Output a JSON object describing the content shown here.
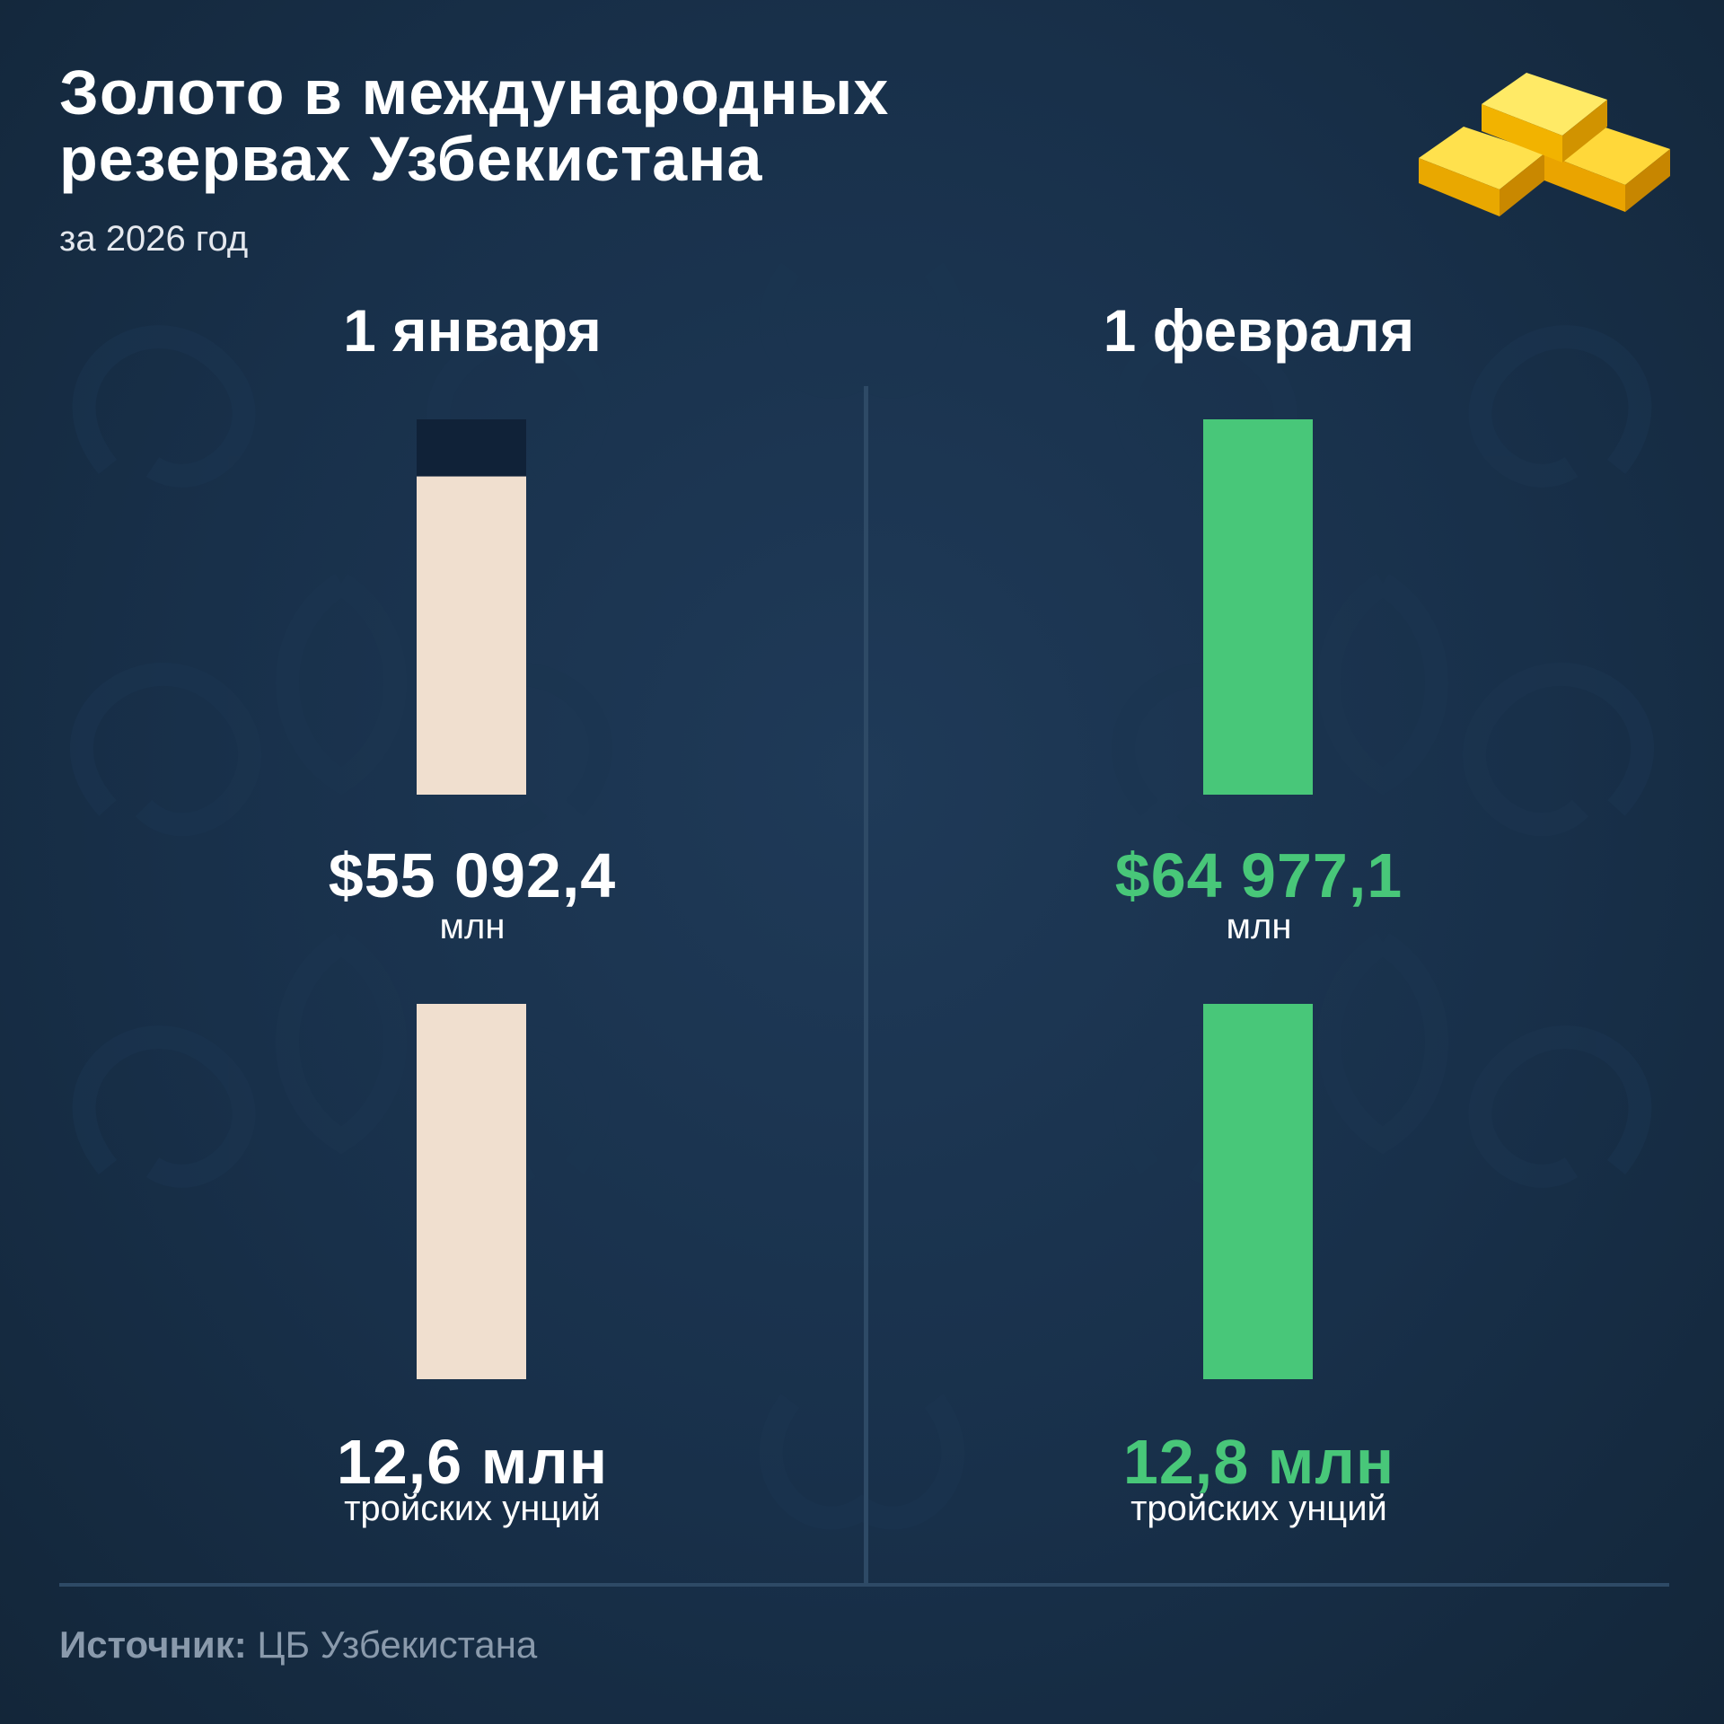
{
  "header": {
    "title_line1": "Золото в международных",
    "title_line2": "резервах Узбекистана",
    "subtitle": "за 2026 год",
    "icon": "gold-bars-icon"
  },
  "colors": {
    "background": "#1a3350",
    "january": "#f0dfcf",
    "february": "#48c779",
    "january_text": "#ffffff",
    "february_text": "#48c779"
  },
  "chart_data": [
    {
      "type": "bar",
      "unit": "млн",
      "categories": [
        "1 января",
        "1 февраля"
      ],
      "values": [
        55092.4,
        64977.1
      ],
      "labels": [
        "$55 092,4",
        "$64 977,1"
      ]
    },
    {
      "type": "bar",
      "unit": "тройских унций",
      "categories": [
        "1 января",
        "1 февраля"
      ],
      "values": [
        12.6,
        12.8
      ],
      "labels": [
        "12,6 млн",
        "12,8 млн"
      ]
    }
  ],
  "columns": [
    {
      "date": "1 января",
      "value_usd": "$55 092,4",
      "value_usd_unit": "млн",
      "volume": "12,6 млн",
      "volume_unit": "тройских унций"
    },
    {
      "date": "1 февраля",
      "value_usd": "$64 977,1",
      "value_usd_unit": "млн",
      "volume": "12,8 млн",
      "volume_unit": "тройских унций"
    }
  ],
  "footer": {
    "source_label": "Источник:",
    "source_value": " ЦБ Узбекистана"
  }
}
